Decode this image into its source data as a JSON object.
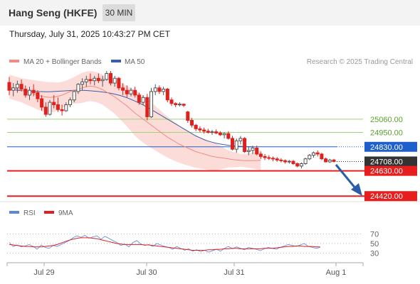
{
  "header": {
    "instrument": "Hang Seng (HKFE)",
    "interval": "30 MIN",
    "timestamp": "Thursday, July 31, 2025 10:43:27 PM CET"
  },
  "legend": {
    "bollinger": {
      "label": "MA 20 + Bollinger Bands",
      "color": "#f28b82"
    },
    "ma50": {
      "label": "MA 50",
      "color": "#3a5ea8"
    },
    "credit": "Research © 2025 Trading Central"
  },
  "rsi_legend": {
    "rsi": {
      "label": "RSI",
      "color": "#5b87d6"
    },
    "ma9": {
      "label": "9MA",
      "color": "#e02020"
    }
  },
  "colors": {
    "bull": "#555555",
    "bear": "#e0201c",
    "resistance_green": "#9bd47a",
    "pivot_blue": "#1f5fcc",
    "support_red": "#e61e1e",
    "last_price": "#333333",
    "arrow": "#2a5ca8"
  },
  "chart_data": [
    {
      "type": "candlestick",
      "title": "Hang Seng (HKFE)",
      "interval": "30 MIN",
      "x_ticks": [
        "Jul 29",
        "Jul 30",
        "Jul 31",
        "Aug 1"
      ],
      "ylim": [
        24380,
        25490
      ],
      "ohlc": [
        [
          25365,
          25410,
          25260,
          25300
        ],
        [
          25300,
          25360,
          25250,
          25320
        ],
        [
          25320,
          25380,
          25280,
          25350
        ],
        [
          25350,
          25390,
          25290,
          25310
        ],
        [
          25310,
          25340,
          25240,
          25260
        ],
        [
          25260,
          25330,
          25220,
          25300
        ],
        [
          25300,
          25350,
          25250,
          25280
        ],
        [
          25280,
          25300,
          25200,
          25230
        ],
        [
          25230,
          25260,
          25130,
          25160
        ],
        [
          25160,
          25200,
          25080,
          25100
        ],
        [
          25100,
          25220,
          25090,
          25200
        ],
        [
          25200,
          25260,
          25150,
          25180
        ],
        [
          25180,
          25240,
          25120,
          25140
        ],
        [
          25140,
          25180,
          25090,
          25130
        ],
        [
          25130,
          25200,
          25120,
          25180
        ],
        [
          25180,
          25240,
          25160,
          25220
        ],
        [
          25220,
          25300,
          25200,
          25290
        ],
        [
          25290,
          25360,
          25270,
          25350
        ],
        [
          25350,
          25400,
          25300,
          25370
        ],
        [
          25370,
          25420,
          25330,
          25390
        ],
        [
          25390,
          25440,
          25350,
          25380
        ],
        [
          25380,
          25420,
          25340,
          25400
        ],
        [
          25400,
          25440,
          25360,
          25380
        ],
        [
          25380,
          25420,
          25330,
          25390
        ],
        [
          25390,
          25460,
          25380,
          25440
        ],
        [
          25440,
          25460,
          25340,
          25360
        ],
        [
          25360,
          25420,
          25330,
          25400
        ],
        [
          25400,
          25410,
          25300,
          25320
        ],
        [
          25320,
          25360,
          25260,
          25300
        ],
        [
          25300,
          25340,
          25240,
          25270
        ],
        [
          25270,
          25320,
          25250,
          25300
        ],
        [
          25300,
          25330,
          25240,
          25260
        ],
        [
          25260,
          25280,
          25180,
          25200
        ],
        [
          25200,
          25260,
          25180,
          25240
        ],
        [
          25240,
          25270,
          25050,
          25080
        ],
        [
          25080,
          25320,
          25070,
          25290
        ],
        [
          25290,
          25350,
          25260,
          25320
        ],
        [
          25320,
          25340,
          25270,
          25290
        ],
        [
          25290,
          25330,
          25260,
          25310
        ],
        [
          25310,
          25320,
          25200,
          25220
        ],
        [
          25220,
          25240,
          25170,
          25190
        ],
        [
          25190,
          25200,
          25160,
          25180
        ],
        [
          25180,
          25200,
          25165,
          25185
        ],
        [
          25185,
          25190,
          25160,
          25175
        ],
        [
          25120,
          25130,
          25030,
          25050
        ],
        [
          25050,
          25070,
          24990,
          25010
        ],
        [
          25010,
          25020,
          24960,
          24980
        ],
        [
          24980,
          25000,
          24950,
          24970
        ],
        [
          24970,
          24990,
          24940,
          24960
        ],
        [
          24960,
          24980,
          24940,
          24950
        ],
        [
          24950,
          24970,
          24930,
          24955
        ],
        [
          24955,
          24975,
          24935,
          24945
        ],
        [
          24945,
          24960,
          24920,
          24930
        ],
        [
          24930,
          24950,
          24900,
          24940
        ],
        [
          24940,
          24960,
          24890,
          24900
        ],
        [
          24900,
          24920,
          24800,
          24810
        ],
        [
          24810,
          24900,
          24780,
          24880
        ],
        [
          24880,
          24920,
          24850,
          24900
        ],
        [
          24900,
          24910,
          24780,
          24790
        ],
        [
          24790,
          24830,
          24760,
          24800
        ],
        [
          24800,
          24840,
          24770,
          24820
        ],
        [
          24820,
          24840,
          24760,
          24770
        ],
        [
          24770,
          24790,
          24730,
          24750
        ],
        [
          24750,
          24770,
          24720,
          24740
        ],
        [
          24740,
          24760,
          24720,
          24735
        ],
        [
          24735,
          24750,
          24710,
          24730
        ],
        [
          24730,
          24745,
          24705,
          24720
        ],
        [
          24720,
          24735,
          24700,
          24715
        ],
        [
          24715,
          24725,
          24690,
          24705
        ],
        [
          24705,
          24720,
          24690,
          24710
        ],
        [
          24710,
          24720,
          24680,
          24690
        ],
        [
          24690,
          24700,
          24660,
          24670
        ],
        [
          24670,
          24700,
          24650,
          24690
        ],
        [
          24690,
          24740,
          24680,
          24730
        ],
        [
          24730,
          24770,
          24720,
          24760
        ],
        [
          24760,
          24790,
          24740,
          24780
        ],
        [
          24780,
          24800,
          24750,
          24770
        ],
        [
          24770,
          24780,
          24720,
          24730
        ],
        [
          24730,
          24740,
          24700,
          24705
        ],
        [
          24705,
          24730,
          24695,
          24720
        ],
        [
          24720,
          24730,
          24700,
          24708
        ]
      ],
      "ma20_bollinger": {
        "upper": [
          25430,
          25420,
          25410,
          25400,
          25395,
          25390,
          25385,
          25380,
          25375,
          25370,
          25368,
          25366,
          25365,
          25370,
          25380,
          25395,
          25410,
          25430,
          25445,
          25455,
          25460,
          25455,
          25445,
          25430,
          25415,
          25400,
          25385,
          25370,
          25355,
          25340,
          25320,
          25300,
          25280,
          25255,
          25230,
          25200,
          25170,
          25140,
          25110,
          25080,
          25055,
          25030,
          25005,
          24985,
          24965,
          24945,
          24925,
          24910,
          24895,
          24880,
          24870,
          24855,
          24840,
          24820,
          24800,
          24790,
          24780,
          24770,
          24770,
          24775,
          24780,
          24790,
          24800
        ],
        "middle": [
          25330,
          25320,
          25310,
          25300,
          25290,
          25280,
          25270,
          25260,
          25250,
          25245,
          25240,
          25245,
          25250,
          25260,
          25275,
          25290,
          25300,
          25310,
          25320,
          25330,
          25335,
          25330,
          25320,
          25305,
          25285,
          25265,
          25245,
          25220,
          25195,
          25170,
          25140,
          25110,
          25085,
          25060,
          25035,
          25010,
          24985,
          24960,
          24935,
          24910,
          24890,
          24870,
          24850,
          24835,
          24820,
          24805,
          24790,
          24780,
          24770,
          24760,
          24750,
          24745,
          24740,
          24735,
          24730,
          24725,
          24720,
          24718,
          24716,
          24715,
          24715,
          24716,
          24718
        ],
        "lower": [
          25230,
          25220,
          25210,
          25200,
          25185,
          25170,
          25155,
          25140,
          25125,
          25120,
          25115,
          25120,
          25135,
          25150,
          25170,
          25185,
          25190,
          25190,
          25195,
          25205,
          25210,
          25205,
          25195,
          25180,
          25155,
          25130,
          25105,
          25070,
          25035,
          25000,
          24960,
          24920,
          24890,
          24865,
          24840,
          24820,
          24800,
          24780,
          24760,
          24740,
          24725,
          24710,
          24695,
          24685,
          24675,
          24665,
          24655,
          24650,
          24645,
          24640,
          24630,
          24635,
          24640,
          24650,
          24660,
          24660,
          24660,
          24666,
          24662,
          24655,
          24650,
          24642,
          24636
        ]
      },
      "ma50": [
        25310,
        25305,
        25300,
        25298,
        25296,
        25294,
        25292,
        25290,
        25289,
        25288,
        25288,
        25290,
        25292,
        25294,
        25296,
        25298,
        25300,
        25300,
        25299,
        25298,
        25296,
        25293,
        25290,
        25286,
        25281,
        25275,
        25268,
        25260,
        25250,
        25238,
        25225,
        25210,
        25195,
        25178,
        25160,
        25140,
        25120,
        25100,
        25080,
        25060,
        25040,
        25020,
        25000,
        24980,
        24960,
        24940,
        24920,
        24905,
        24890,
        24878,
        24868,
        24860,
        24853,
        24848,
        24843,
        24839,
        24836,
        24834,
        24832,
        24831,
        24830
      ],
      "levels": [
        {
          "label": "25060.00",
          "value": 25060,
          "kind": "resistance"
        },
        {
          "label": "24950.00",
          "value": 24950,
          "kind": "resistance"
        },
        {
          "label": "24830.00",
          "value": 24830,
          "kind": "pivot"
        },
        {
          "label": "24708.00",
          "value": 24708,
          "kind": "last"
        },
        {
          "label": "24630.00",
          "value": 24630,
          "kind": "support"
        },
        {
          "label": "24420.00",
          "value": 24420,
          "kind": "support"
        }
      ]
    },
    {
      "type": "line",
      "title": "RSI",
      "ylim": [
        16,
        84
      ],
      "y_ticks": [
        70,
        50,
        30
      ],
      "series": [
        {
          "name": "RSI",
          "values": [
            52,
            44,
            47,
            43,
            45,
            48,
            44,
            38,
            47,
            42,
            40,
            46,
            44,
            48,
            52,
            56,
            62,
            66,
            63,
            67,
            61,
            64,
            66,
            59,
            65,
            61,
            56,
            52,
            46,
            49,
            43,
            52,
            56,
            49,
            46,
            48,
            44,
            50,
            47,
            44,
            42,
            38,
            44,
            40,
            36,
            39,
            34,
            37,
            33,
            36,
            32,
            35,
            38,
            34,
            40,
            44,
            39,
            43,
            40,
            37,
            42,
            40,
            38,
            35,
            39,
            42,
            40,
            38,
            42,
            45,
            48,
            46,
            44,
            47,
            50,
            44,
            42,
            40,
            42
          ]
        },
        {
          "name": "9MA",
          "values": [
            48,
            47,
            46,
            45,
            44,
            44,
            43,
            43,
            43,
            44,
            45,
            46,
            48,
            51,
            54,
            57,
            59,
            61,
            62,
            62,
            62,
            61,
            60,
            58,
            56,
            54,
            52,
            50,
            49,
            48,
            48,
            48,
            48,
            48,
            47,
            47,
            46,
            45,
            44,
            43,
            42,
            41,
            40,
            39,
            38,
            37,
            36,
            36,
            36,
            36,
            37,
            37,
            38,
            38,
            39,
            39,
            40,
            40,
            39,
            39,
            39,
            39,
            39,
            39,
            40,
            40,
            40,
            41,
            42,
            43,
            44,
            44,
            45,
            45,
            44,
            44,
            44,
            43,
            43
          ]
        }
      ]
    }
  ]
}
